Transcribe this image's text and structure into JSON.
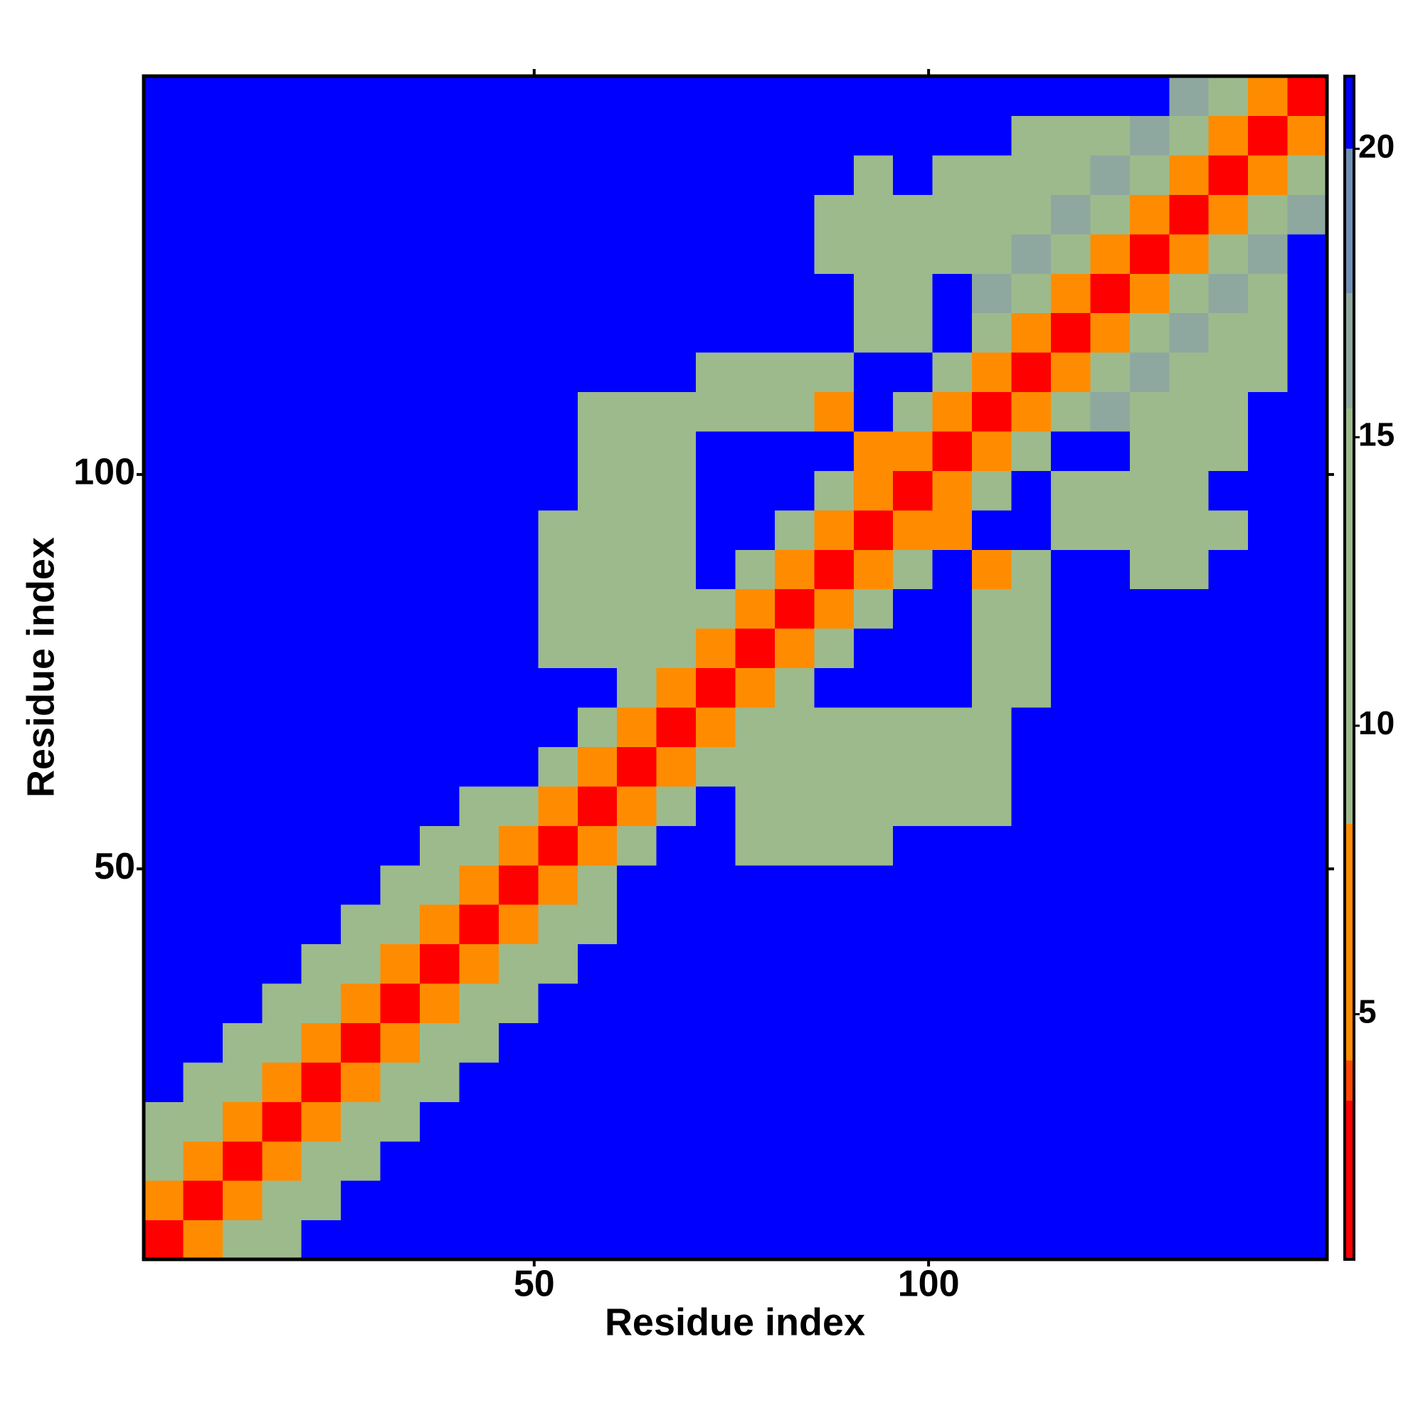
{
  "chart_data": {
    "type": "heatmap",
    "xlabel": "Residue index",
    "ylabel": "Residue index",
    "xlim": [
      0.5,
      150.5
    ],
    "ylim": [
      0.5,
      150.5
    ],
    "xticks": [
      50,
      100
    ],
    "yticks": [
      50,
      100
    ],
    "zlim": [
      0.75,
      21.26
    ],
    "zticks": [
      5,
      10,
      15,
      20
    ],
    "colorscale": [
      {
        "value": 0.75,
        "color": "#ff0000"
      },
      {
        "value": 3.5,
        "color": "#ff4500"
      },
      {
        "value": 4.2,
        "color": "#ff8c00"
      },
      {
        "value": 8.3,
        "color": "#9dba8c"
      },
      {
        "value": 15.5,
        "color": "#8ea8a0"
      },
      {
        "value": 17.5,
        "color": "#6f8fb4"
      },
      {
        "value": 20,
        "color": "#0000ff"
      }
    ],
    "x": [
      3,
      8,
      13,
      18,
      23,
      28,
      33,
      38,
      43,
      48,
      53,
      58,
      63,
      68,
      73,
      78,
      83,
      88,
      93,
      98,
      103,
      108,
      113,
      118,
      123,
      128,
      133,
      138,
      143,
      148
    ],
    "y": [
      3,
      8,
      13,
      18,
      23,
      28,
      33,
      38,
      43,
      48,
      53,
      58,
      63,
      68,
      73,
      78,
      83,
      88,
      93,
      98,
      103,
      108,
      113,
      118,
      123,
      128,
      133,
      138,
      143,
      148
    ],
    "z": [
      [
        2,
        6,
        11,
        14,
        21,
        21,
        21,
        21,
        21,
        21,
        21,
        21,
        21,
        21,
        21,
        21,
        21,
        21,
        21,
        21,
        21,
        21,
        21,
        21,
        21,
        21,
        21,
        21,
        21,
        21
      ],
      [
        6,
        2,
        6,
        11,
        14,
        21,
        21,
        21,
        21,
        21,
        21,
        21,
        21,
        21,
        21,
        21,
        21,
        21,
        21,
        21,
        21,
        21,
        21,
        21,
        21,
        21,
        21,
        21,
        21,
        21
      ],
      [
        11,
        6,
        2,
        6,
        11,
        14,
        21,
        21,
        21,
        21,
        21,
        21,
        21,
        21,
        21,
        21,
        21,
        21,
        21,
        21,
        21,
        21,
        21,
        21,
        21,
        21,
        21,
        21,
        21,
        21
      ],
      [
        14,
        11,
        6,
        2,
        6,
        11,
        14,
        21,
        21,
        21,
        21,
        21,
        21,
        21,
        21,
        21,
        21,
        21,
        21,
        21,
        21,
        21,
        21,
        21,
        21,
        21,
        21,
        21,
        21,
        21
      ],
      [
        21,
        14,
        11,
        6,
        2,
        6,
        11,
        14,
        21,
        21,
        21,
        21,
        21,
        21,
        21,
        21,
        21,
        21,
        21,
        21,
        21,
        21,
        21,
        21,
        21,
        21,
        21,
        21,
        21,
        21
      ],
      [
        21,
        21,
        14,
        11,
        6,
        2,
        6,
        11,
        14,
        21,
        21,
        21,
        21,
        21,
        21,
        21,
        21,
        21,
        21,
        21,
        21,
        21,
        21,
        21,
        21,
        21,
        21,
        21,
        21,
        21
      ],
      [
        21,
        21,
        21,
        14,
        11,
        6,
        2,
        6,
        11,
        14,
        21,
        21,
        21,
        21,
        21,
        21,
        21,
        21,
        21,
        21,
        21,
        21,
        21,
        21,
        21,
        21,
        21,
        21,
        21,
        21
      ],
      [
        21,
        21,
        21,
        21,
        14,
        11,
        6,
        2,
        6,
        11,
        14,
        21,
        21,
        21,
        21,
        21,
        21,
        21,
        21,
        21,
        21,
        21,
        21,
        21,
        21,
        21,
        21,
        21,
        21,
        21
      ],
      [
        21,
        21,
        21,
        21,
        21,
        14,
        11,
        6,
        2,
        6,
        11,
        14,
        21,
        21,
        21,
        21,
        21,
        21,
        21,
        21,
        21,
        21,
        21,
        21,
        21,
        21,
        21,
        21,
        21,
        21
      ],
      [
        21,
        21,
        21,
        21,
        21,
        21,
        14,
        11,
        6,
        2,
        6,
        13,
        21,
        21,
        21,
        21,
        21,
        21,
        21,
        21,
        21,
        21,
        21,
        21,
        21,
        21,
        21,
        21,
        21,
        21
      ],
      [
        21,
        21,
        21,
        21,
        21,
        21,
        21,
        14,
        11,
        6,
        2,
        6,
        13,
        21,
        21,
        13,
        13,
        13,
        13,
        21,
        21,
        21,
        21,
        21,
        21,
        21,
        21,
        21,
        21,
        21
      ],
      [
        21,
        21,
        21,
        21,
        21,
        21,
        21,
        21,
        14,
        13,
        6,
        2,
        6,
        13,
        21,
        13,
        13,
        13,
        13,
        13,
        13,
        13,
        21,
        21,
        21,
        21,
        21,
        21,
        21,
        21
      ],
      [
        21,
        21,
        21,
        21,
        21,
        21,
        21,
        21,
        21,
        21,
        13,
        6,
        2,
        6,
        13,
        13,
        13,
        13,
        13,
        13,
        13,
        13,
        21,
        21,
        21,
        21,
        21,
        21,
        21,
        21
      ],
      [
        21,
        21,
        21,
        21,
        21,
        21,
        21,
        21,
        21,
        21,
        21,
        13,
        6,
        2,
        6,
        13,
        13,
        13,
        13,
        13,
        13,
        13,
        21,
        21,
        21,
        21,
        21,
        21,
        21,
        21
      ],
      [
        21,
        21,
        21,
        21,
        21,
        21,
        21,
        21,
        21,
        21,
        21,
        21,
        13,
        6,
        2,
        6,
        13,
        21,
        21,
        21,
        21,
        15,
        15,
        21,
        21,
        21,
        21,
        21,
        21,
        21
      ],
      [
        21,
        21,
        21,
        21,
        21,
        21,
        21,
        21,
        21,
        21,
        13,
        13,
        13,
        13,
        6,
        2,
        6,
        13,
        21,
        21,
        21,
        15,
        15,
        21,
        21,
        21,
        21,
        21,
        21,
        21
      ],
      [
        21,
        21,
        21,
        21,
        21,
        21,
        21,
        21,
        21,
        21,
        13,
        13,
        13,
        13,
        13,
        6,
        2,
        6,
        13,
        21,
        21,
        12,
        15,
        21,
        21,
        21,
        21,
        21,
        21,
        21
      ],
      [
        21,
        21,
        21,
        21,
        21,
        21,
        21,
        21,
        21,
        21,
        13,
        13,
        13,
        13,
        21,
        13,
        6,
        2,
        6,
        13,
        21,
        8,
        12,
        21,
        21,
        15,
        15,
        21,
        21,
        21
      ],
      [
        21,
        21,
        21,
        21,
        21,
        21,
        21,
        21,
        21,
        21,
        13,
        13,
        13,
        13,
        21,
        21,
        13,
        6,
        2,
        6,
        6,
        21,
        21,
        13,
        13,
        13,
        13,
        15,
        21,
        21
      ],
      [
        21,
        21,
        21,
        21,
        21,
        21,
        21,
        21,
        21,
        21,
        21,
        13,
        13,
        13,
        21,
        21,
        21,
        13,
        6,
        2,
        6,
        12,
        21,
        13,
        13,
        13,
        13,
        21,
        21,
        21
      ],
      [
        21,
        21,
        21,
        21,
        21,
        21,
        21,
        21,
        21,
        21,
        21,
        13,
        13,
        13,
        21,
        21,
        21,
        21,
        6,
        6,
        2,
        6,
        12,
        21,
        21,
        14,
        14,
        14,
        21,
        21
      ],
      [
        21,
        21,
        21,
        21,
        21,
        21,
        21,
        21,
        21,
        21,
        21,
        13,
        13,
        13,
        15,
        15,
        12,
        8,
        21,
        12,
        6,
        2,
        6,
        12,
        16,
        14,
        14,
        14,
        21,
        21
      ],
      [
        21,
        21,
        21,
        21,
        21,
        21,
        21,
        21,
        21,
        21,
        21,
        21,
        21,
        21,
        15,
        15,
        15,
        12,
        21,
        21,
        12,
        6,
        2,
        6,
        12,
        16,
        14,
        14,
        14,
        21
      ],
      [
        21,
        21,
        21,
        21,
        21,
        21,
        21,
        21,
        21,
        21,
        21,
        21,
        21,
        21,
        21,
        21,
        21,
        21,
        13,
        13,
        21,
        12,
        6,
        2,
        6,
        12,
        16,
        14,
        14,
        21
      ],
      [
        21,
        21,
        21,
        21,
        21,
        21,
        21,
        21,
        21,
        21,
        21,
        21,
        21,
        21,
        21,
        21,
        21,
        21,
        13,
        13,
        21,
        16,
        12,
        6,
        2,
        6,
        12,
        16,
        14,
        21
      ],
      [
        21,
        21,
        21,
        21,
        21,
        21,
        21,
        21,
        21,
        21,
        21,
        21,
        21,
        21,
        21,
        21,
        21,
        15,
        13,
        13,
        14,
        14,
        16,
        12,
        6,
        2,
        6,
        12,
        16,
        21
      ],
      [
        21,
        21,
        21,
        21,
        21,
        21,
        21,
        21,
        21,
        21,
        21,
        21,
        21,
        21,
        21,
        21,
        21,
        15,
        13,
        13,
        14,
        14,
        14,
        16,
        12,
        6,
        2,
        6,
        12,
        16
      ],
      [
        21,
        21,
        21,
        21,
        21,
        21,
        21,
        21,
        21,
        21,
        21,
        21,
        21,
        21,
        21,
        21,
        21,
        21,
        15,
        21,
        14,
        14,
        14,
        14,
        16,
        12,
        6,
        2,
        6,
        12
      ],
      [
        21,
        21,
        21,
        21,
        21,
        21,
        21,
        21,
        21,
        21,
        21,
        21,
        21,
        21,
        21,
        21,
        21,
        21,
        21,
        21,
        21,
        21,
        14,
        14,
        14,
        16,
        12,
        6,
        2,
        6
      ],
      [
        21,
        21,
        21,
        21,
        21,
        21,
        21,
        21,
        21,
        21,
        21,
        21,
        21,
        21,
        21,
        21,
        21,
        21,
        21,
        21,
        21,
        21,
        21,
        21,
        21,
        21,
        16,
        12,
        6,
        2
      ]
    ]
  }
}
